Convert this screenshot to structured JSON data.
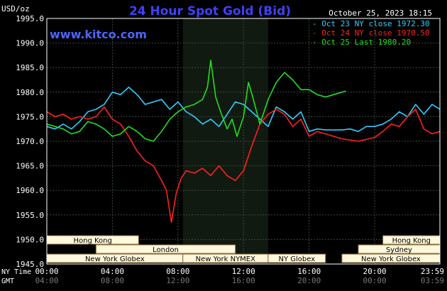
{
  "header": {
    "unit": "USD/oz",
    "title": "24 Hour Spot Gold (Bid)",
    "timestamp": "October 25, 2023 18:15",
    "watermark": "www.kitco.com"
  },
  "colors": {
    "background": "#000000",
    "plot_bg": "#000000",
    "night_band": "#111a11",
    "grid": "#3a4a3a",
    "axis_text": "#ffffff",
    "title": "#4040ff",
    "watermark": "#4a66ff",
    "timestamp": "#ffffff",
    "session_bar": "#fff8dc",
    "session_border": "#8a6a3a",
    "session_text": "#000000"
  },
  "chart_data": {
    "type": "line",
    "title": "24 Hour Spot Gold (Bid)",
    "ylabel": "USD/oz",
    "ylim": [
      1945.0,
      1995.0
    ],
    "y_ticks": [
      "1995.0",
      "1990.0",
      "1985.0",
      "1980.0",
      "1975.0",
      "1970.0",
      "1965.0",
      "1960.0",
      "1955.0",
      "1950.0",
      "1945.0"
    ],
    "y_tick_values": [
      1995,
      1990,
      1985,
      1980,
      1975,
      1970,
      1965,
      1960,
      1955,
      1950,
      1945
    ],
    "x_row_labels": [
      "NY Time",
      "GMT"
    ],
    "x_ny_ticks": [
      "00:00",
      "04:00",
      "08:00",
      "12:00",
      "16:00",
      "20:00",
      "23:59"
    ],
    "x_gmt_ticks": [
      "04:00",
      "08:00",
      "12:00",
      "16:00",
      "20:00",
      "00:00",
      "03:59"
    ],
    "x_tick_hours": [
      0,
      4,
      8,
      12,
      16,
      20,
      23.98
    ],
    "grid": true,
    "legend_position": "top-right",
    "series": [
      {
        "name": "Oct 23 NY close 1972.30",
        "color": "#33ccff",
        "points": [
          [
            0,
            1973.0
          ],
          [
            0.5,
            1972.5
          ],
          [
            1,
            1973.5
          ],
          [
            1.5,
            1972.5
          ],
          [
            2,
            1974.0
          ],
          [
            2.5,
            1976.0
          ],
          [
            3,
            1976.5
          ],
          [
            3.5,
            1977.5
          ],
          [
            4,
            1980.0
          ],
          [
            4.5,
            1979.5
          ],
          [
            5,
            1981.0
          ],
          [
            5.5,
            1979.5
          ],
          [
            6,
            1977.5
          ],
          [
            6.5,
            1978.0
          ],
          [
            7,
            1978.5
          ],
          [
            7.5,
            1976.5
          ],
          [
            8,
            1978.0
          ],
          [
            8.5,
            1976.0
          ],
          [
            9,
            1975.0
          ],
          [
            9.5,
            1973.5
          ],
          [
            10,
            1974.5
          ],
          [
            10.5,
            1973.0
          ],
          [
            11,
            1975.5
          ],
          [
            11.5,
            1978.0
          ],
          [
            12,
            1977.5
          ],
          [
            12.5,
            1976.0
          ],
          [
            13,
            1974.5
          ],
          [
            13.5,
            1973.0
          ],
          [
            14,
            1977.0
          ],
          [
            14.5,
            1976.0
          ],
          [
            15,
            1974.5
          ],
          [
            15.5,
            1976.0
          ],
          [
            16,
            1972.0
          ],
          [
            16.5,
            1972.5
          ],
          [
            17,
            1972.3
          ],
          [
            18,
            1972.3
          ],
          [
            18.5,
            1972.5
          ],
          [
            19,
            1972.0
          ],
          [
            19.5,
            1973.0
          ],
          [
            20,
            1973.0
          ],
          [
            20.5,
            1973.5
          ],
          [
            21,
            1974.5
          ],
          [
            21.5,
            1976.0
          ],
          [
            22,
            1975.0
          ],
          [
            22.5,
            1977.5
          ],
          [
            23,
            1975.5
          ],
          [
            23.5,
            1977.5
          ],
          [
            23.98,
            1976.5
          ]
        ]
      },
      {
        "name": "Oct 24 NY close 1970.50",
        "color": "#ff2020",
        "points": [
          [
            0,
            1976.0
          ],
          [
            0.5,
            1975.0
          ],
          [
            1,
            1975.5
          ],
          [
            1.5,
            1974.5
          ],
          [
            2,
            1975.0
          ],
          [
            2.5,
            1974.5
          ],
          [
            3,
            1975.0
          ],
          [
            3.5,
            1977.0
          ],
          [
            4,
            1974.5
          ],
          [
            4.5,
            1973.5
          ],
          [
            5,
            1971.0
          ],
          [
            5.5,
            1968.0
          ],
          [
            6,
            1966.0
          ],
          [
            6.5,
            1965.0
          ],
          [
            7,
            1962.0
          ],
          [
            7.3,
            1960.0
          ],
          [
            7.6,
            1953.5
          ],
          [
            7.9,
            1959.5
          ],
          [
            8.2,
            1962.5
          ],
          [
            8.5,
            1964.0
          ],
          [
            9,
            1963.5
          ],
          [
            9.5,
            1964.5
          ],
          [
            10,
            1963.0
          ],
          [
            10.5,
            1965.0
          ],
          [
            11,
            1963.0
          ],
          [
            11.5,
            1962.0
          ],
          [
            12,
            1964.0
          ],
          [
            12.5,
            1969.0
          ],
          [
            13,
            1973.5
          ],
          [
            13.5,
            1975.5
          ],
          [
            14,
            1976.5
          ],
          [
            14.5,
            1975.5
          ],
          [
            15,
            1973.0
          ],
          [
            15.5,
            1974.5
          ],
          [
            16,
            1971.0
          ],
          [
            16.5,
            1972.0
          ],
          [
            17,
            1971.5
          ],
          [
            18,
            1970.5
          ],
          [
            19,
            1970.0
          ],
          [
            20,
            1970.8
          ],
          [
            20.5,
            1972.0
          ],
          [
            21,
            1973.5
          ],
          [
            21.5,
            1973.0
          ],
          [
            22,
            1975.0
          ],
          [
            22.5,
            1976.5
          ],
          [
            23,
            1972.5
          ],
          [
            23.5,
            1971.5
          ],
          [
            23.98,
            1972.0
          ]
        ]
      },
      {
        "name": "Oct 25 Last 1980.20",
        "color": "#22dd22",
        "points": [
          [
            0,
            1973.5
          ],
          [
            0.5,
            1973.0
          ],
          [
            1,
            1972.5
          ],
          [
            1.5,
            1971.5
          ],
          [
            2,
            1972.0
          ],
          [
            2.5,
            1974.0
          ],
          [
            3,
            1973.5
          ],
          [
            3.5,
            1972.5
          ],
          [
            4,
            1971.0
          ],
          [
            4.5,
            1971.5
          ],
          [
            5,
            1973.0
          ],
          [
            5.5,
            1972.0
          ],
          [
            6,
            1970.5
          ],
          [
            6.5,
            1970.0
          ],
          [
            7,
            1972.0
          ],
          [
            7.5,
            1974.5
          ],
          [
            8,
            1976.0
          ],
          [
            8.5,
            1977.0
          ],
          [
            9,
            1977.5
          ],
          [
            9.5,
            1978.5
          ],
          [
            9.8,
            1981.0
          ],
          [
            10,
            1986.5
          ],
          [
            10.3,
            1979.0
          ],
          [
            10.6,
            1976.0
          ],
          [
            11,
            1972.5
          ],
          [
            11.3,
            1974.5
          ],
          [
            11.6,
            1971.0
          ],
          [
            12,
            1975.0
          ],
          [
            12.3,
            1982.0
          ],
          [
            12.6,
            1978.5
          ],
          [
            13,
            1973.5
          ],
          [
            13.5,
            1978.5
          ],
          [
            14,
            1982.0
          ],
          [
            14.5,
            1984.0
          ],
          [
            15,
            1982.5
          ],
          [
            15.5,
            1980.5
          ],
          [
            16,
            1980.5
          ],
          [
            16.5,
            1979.5
          ],
          [
            17,
            1979.0
          ],
          [
            17.5,
            1979.5
          ],
          [
            18,
            1980.0
          ],
          [
            18.25,
            1980.2
          ]
        ]
      }
    ],
    "sessions": [
      {
        "label": "Hong Kong",
        "start": 0,
        "end": 5.6,
        "row": 0
      },
      {
        "label": "Hong Kong",
        "start": 20.5,
        "end": 23.98,
        "row": 0
      },
      {
        "label": "London",
        "start": 3.0,
        "end": 11.5,
        "row": 1
      },
      {
        "label": "Sydney",
        "start": 19.0,
        "end": 23.98,
        "row": 1
      },
      {
        "label": "New York Globex",
        "start": 0,
        "end": 8.3,
        "row": 2
      },
      {
        "label": "New York NYMEX",
        "start": 8.3,
        "end": 13.5,
        "row": 2
      },
      {
        "label": "NY Globex",
        "start": 13.5,
        "end": 17.0,
        "row": 2
      },
      {
        "label": "New York Globex",
        "start": 18.0,
        "end": 23.98,
        "row": 2
      }
    ],
    "night_band": [
      8.3,
      13.5
    ]
  }
}
